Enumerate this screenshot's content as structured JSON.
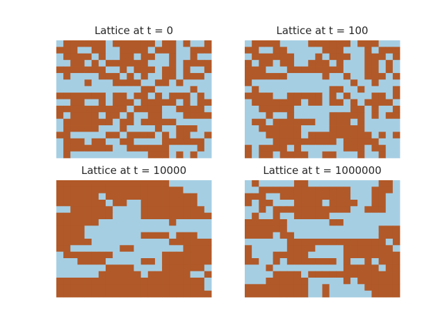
{
  "chart_data": [
    {
      "type": "heatmap",
      "title": "Lattice at t = 0",
      "colors": {
        "0": "#a6cee3",
        "1": "#b15928"
      },
      "grid": [
        "0111111011111101101001",
        "1110011001111011100111",
        "0111101001101100100100",
        "0011010111111000101111",
        "1111111001011101101001",
        "0100001110101001101110",
        "0000100011110011010000",
        "0000000000001100000100",
        "1111111011011010111010",
        "0011001011101111101011",
        "1111111111011110011110",
        "1011110110100110001111",
        "0111111101101111100000",
        "0111110001000010011100",
        "1100000110111101011001",
        "0111011001100001111110",
        "0111111100111111000010",
        "0100000000000111010100"
      ]
    },
    {
      "type": "heatmap",
      "title": "Lattice at t = 100",
      "colors": {
        "0": "#a6cee3",
        "1": "#b15928"
      },
      "grid": [
        "0111100001111110111000",
        "1100110000011100010111",
        "0111111000101110011101",
        "1011011001110100011010",
        "1110001111111100011010",
        "1111110000010010011101",
        "1000000000000001001000",
        "0100000000001100100001",
        "1111001111101010001101",
        "0111111101101101011110",
        "0011111000000001101001",
        "0001001000001111101011",
        "0110111111001110100000",
        "0011111100001111100000",
        "0001111101111111110101",
        "0000111111111011111000",
        "1011110100000011101100",
        "1011011110011000100100"
      ]
    },
    {
      "type": "heatmap",
      "title": "Lattice at t = 10000",
      "colors": {
        "0": "#a6cee3",
        "1": "#b15928"
      },
      "grid": [
        "1111111111111111000000",
        "1111111111111111110000",
        "1111110111111111111100",
        "1111111011001111111100",
        "0011111100001111111110",
        "1111111100001111111111",
        "1111110000000000100000",
        "1111000000000000000000",
        "1111000000001111011100",
        "1111100000000000111111",
        "1100000001100000001111",
        "0111111100000001111111",
        "0001111000001101111111",
        "0000000111100001111110",
        "0000001111110111111001",
        "1111111111111111111110",
        "1111111111111111111110",
        "1111111111111111111111"
      ]
    },
    {
      "type": "heatmap",
      "title": "Lattice at t = 1000000",
      "colors": {
        "0": "#a6cee3",
        "1": "#b15928"
      },
      "grid": [
        "0100000110000000000110",
        "0011111111111110001110",
        "1110011111111110001100",
        "1011000111101111001100",
        "0010111111111110011100",
        "0100100111110000000000",
        "1111110000001100000000",
        "1111110000000000000111",
        "1111011000000000000111",
        "0000001111111111111101",
        "1000001111000011111110",
        "1000111110000011111111",
        "1100101111111010010111",
        "0001000000000011111011",
        "0000111101111111111111",
        "0001111110000010111111",
        "1111111110010000011111",
        "1111111110010000001111"
      ]
    }
  ]
}
